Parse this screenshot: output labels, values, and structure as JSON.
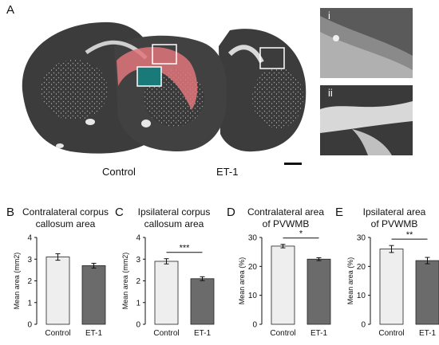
{
  "panel_a": {
    "letter": "A",
    "labels": {
      "left": "Control",
      "right": "ET-1"
    },
    "insets": [
      "i",
      "ii"
    ]
  },
  "colors": {
    "control_bar": "#eeeeee",
    "et1_bar": "#6b6b6b",
    "highlight": "#e0777d",
    "tissue": "#3c3c3c"
  },
  "chart_data": [
    {
      "panel": "B",
      "type": "bar",
      "title_lines": [
        "Contralateral corpus",
        "callosum area"
      ],
      "ylabel": "Mean area (mm2)",
      "categories": [
        "Control",
        "ET-1"
      ],
      "values": [
        3.1,
        2.7
      ],
      "errors": [
        0.15,
        0.11
      ],
      "ylim": [
        0,
        4
      ],
      "yticks": [
        "0",
        "1",
        "2",
        "3",
        "4"
      ],
      "significance": ""
    },
    {
      "panel": "C",
      "type": "bar",
      "title_lines": [
        "Ipsilateral corpus",
        "callosum area"
      ],
      "ylabel": "Mean area (mm2)",
      "categories": [
        "Control",
        "ET-1"
      ],
      "values": [
        2.9,
        2.1
      ],
      "errors": [
        0.12,
        0.09
      ],
      "ylim": [
        0,
        4
      ],
      "yticks": [
        "0",
        "1",
        "2",
        "3",
        "4"
      ],
      "significance": "***"
    },
    {
      "panel": "D",
      "type": "bar",
      "title_lines": [
        "Contralateral area",
        "of PVWMB"
      ],
      "ylabel": "Mean area (%)",
      "categories": [
        "Control",
        "ET-1"
      ],
      "values": [
        27,
        22.5
      ],
      "errors": [
        0.6,
        0.5
      ],
      "ylim": [
        0,
        30
      ],
      "yticks": [
        "0",
        "10",
        "20",
        "30"
      ],
      "significance": "*"
    },
    {
      "panel": "E",
      "type": "bar",
      "title_lines": [
        "Ipsilateral area",
        "of PVWMB"
      ],
      "ylabel": "Mean area (%)",
      "categories": [
        "Control",
        "ET-1"
      ],
      "values": [
        26,
        22
      ],
      "errors": [
        1.2,
        1.1
      ],
      "ylim": [
        0,
        30
      ],
      "yticks": [
        "0",
        "10",
        "20",
        "30"
      ],
      "significance": "**"
    }
  ]
}
